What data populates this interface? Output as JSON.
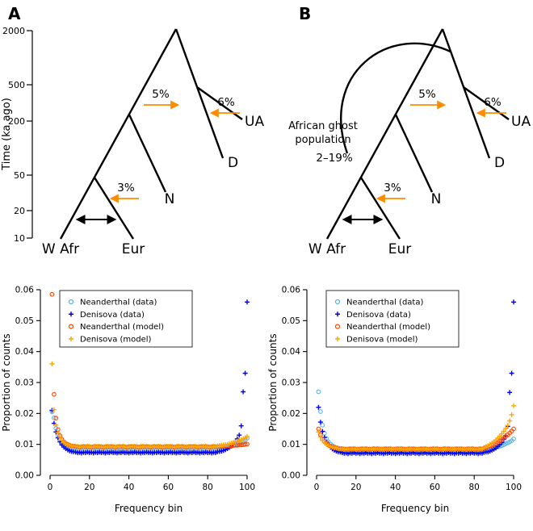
{
  "panels": {
    "a": "A",
    "b": "B"
  },
  "colors": {
    "neanderthal_data": "#56b4e9",
    "denisova_data": "#0000ee",
    "neanderthal_model": "#ff4500",
    "denisova_model": "#ffa500",
    "arrow": "#ff8c00",
    "ghost_rate": "#e8000b"
  },
  "tree": {
    "time_axis_label": "Time (ka ago)",
    "time_ticks": [
      "2000",
      "500",
      "200",
      "50",
      "20",
      "10"
    ],
    "tips": {
      "wafr": "W Afr",
      "eur": "Eur",
      "n": "N",
      "d": "D",
      "ua": "UA"
    },
    "arrows": {
      "five": "5%",
      "six": "6%",
      "three": "3%"
    },
    "ghost": {
      "line1": "African ghost",
      "line2": "population",
      "rate": "2–19%"
    }
  },
  "chart_data": [
    {
      "type": "scatter",
      "panel": "A",
      "xlabel": "Frequency bin",
      "ylabel": "Proportion of counts",
      "xlim": [
        0,
        100
      ],
      "ylim": [
        0,
        0.06
      ],
      "x_ticks": [
        0,
        20,
        40,
        60,
        80,
        100
      ],
      "y_ticks": [
        0,
        0.01,
        0.02,
        0.03,
        0.04,
        0.05,
        0.06
      ],
      "grid": "off",
      "legend_position": "top-left",
      "x_start": 1,
      "x_step": 1,
      "series": [
        {
          "name": "Neanderthal (data)",
          "marker": "circle",
          "color": "#56b4e9",
          "y": [
            0.0205,
            0.0186,
            0.0152,
            0.013,
            0.0116,
            0.0107,
            0.01,
            0.0096,
            0.0092,
            0.0089,
            0.0087,
            0.0086,
            0.0083,
            0.0081,
            0.0082,
            0.008,
            0.0082,
            0.0081,
            0.0083,
            0.0081,
            0.0082,
            0.008,
            0.0082,
            0.0081,
            0.0083,
            0.0081,
            0.0082,
            0.008,
            0.0082,
            0.0081,
            0.0083,
            0.0081,
            0.0082,
            0.008,
            0.0082,
            0.0081,
            0.0083,
            0.0081,
            0.0082,
            0.008,
            0.0082,
            0.0081,
            0.0083,
            0.0081,
            0.0082,
            0.008,
            0.0082,
            0.0081,
            0.0083,
            0.0081,
            0.0082,
            0.008,
            0.0082,
            0.0081,
            0.0083,
            0.0081,
            0.0082,
            0.008,
            0.0082,
            0.0081,
            0.0083,
            0.0081,
            0.0082,
            0.008,
            0.0082,
            0.0081,
            0.0083,
            0.0081,
            0.0082,
            0.008,
            0.0082,
            0.0081,
            0.0083,
            0.0081,
            0.0082,
            0.008,
            0.0082,
            0.0081,
            0.0083,
            0.0081,
            0.0082,
            0.008,
            0.0082,
            0.0081,
            0.0084,
            0.0085,
            0.0086,
            0.0087,
            0.0089,
            0.009,
            0.0092,
            0.0094,
            0.0096,
            0.0098,
            0.01,
            0.0103,
            0.0106,
            0.011,
            0.0114,
            0.012
          ]
        },
        {
          "name": "Denisova (data)",
          "marker": "plus",
          "color": "#0000ee",
          "y": [
            0.021,
            0.0168,
            0.014,
            0.0121,
            0.0108,
            0.0098,
            0.0091,
            0.0086,
            0.0082,
            0.0079,
            0.0077,
            0.0076,
            0.0075,
            0.0073,
            0.0074,
            0.0072,
            0.0074,
            0.0073,
            0.0075,
            0.0073,
            0.0074,
            0.0072,
            0.0074,
            0.0073,
            0.0075,
            0.0073,
            0.0074,
            0.0072,
            0.0074,
            0.0073,
            0.0075,
            0.0073,
            0.0074,
            0.0072,
            0.0074,
            0.0073,
            0.0075,
            0.0073,
            0.0074,
            0.0072,
            0.0074,
            0.0073,
            0.0075,
            0.0073,
            0.0074,
            0.0072,
            0.0074,
            0.0073,
            0.0075,
            0.0073,
            0.0074,
            0.0072,
            0.0074,
            0.0073,
            0.0075,
            0.0073,
            0.0074,
            0.0072,
            0.0074,
            0.0073,
            0.0075,
            0.0073,
            0.0074,
            0.0072,
            0.0074,
            0.0073,
            0.0075,
            0.0073,
            0.0074,
            0.0072,
            0.0074,
            0.0073,
            0.0075,
            0.0073,
            0.0074,
            0.0072,
            0.0074,
            0.0073,
            0.0075,
            0.0073,
            0.0074,
            0.0072,
            0.0074,
            0.0073,
            0.0076,
            0.0077,
            0.0078,
            0.008,
            0.0083,
            0.0086,
            0.009,
            0.0095,
            0.0101,
            0.0108,
            0.0118,
            0.013,
            0.016,
            0.027,
            0.033,
            0.056
          ]
        },
        {
          "name": "Neanderthal (model)",
          "marker": "circle",
          "color": "#ff4500",
          "y": [
            0.0585,
            0.0262,
            0.0185,
            0.0148,
            0.0128,
            0.0116,
            0.0108,
            0.0103,
            0.01,
            0.0097,
            0.0095,
            0.0094,
            0.0093,
            0.0092,
            0.0091,
            0.0092,
            0.0093,
            0.0092,
            0.0093,
            0.0092,
            0.0091,
            0.0092,
            0.0093,
            0.0092,
            0.0093,
            0.0092,
            0.0091,
            0.0092,
            0.0093,
            0.0092,
            0.0093,
            0.0092,
            0.0091,
            0.0092,
            0.0093,
            0.0092,
            0.0093,
            0.0092,
            0.0091,
            0.0092,
            0.0093,
            0.0092,
            0.0093,
            0.0092,
            0.0091,
            0.0092,
            0.0093,
            0.0092,
            0.0093,
            0.0092,
            0.0091,
            0.0092,
            0.0093,
            0.0092,
            0.0093,
            0.0092,
            0.0091,
            0.0092,
            0.0093,
            0.0092,
            0.0093,
            0.0092,
            0.0091,
            0.0092,
            0.0093,
            0.0092,
            0.0093,
            0.0092,
            0.0091,
            0.0092,
            0.0093,
            0.0092,
            0.0093,
            0.0092,
            0.0091,
            0.0092,
            0.0093,
            0.0092,
            0.0093,
            0.0092,
            0.0091,
            0.0092,
            0.0093,
            0.0092,
            0.0092,
            0.0093,
            0.0093,
            0.0094,
            0.0094,
            0.0095,
            0.0095,
            0.0096,
            0.0096,
            0.0097,
            0.0097,
            0.0098,
            0.0098,
            0.0099,
            0.01,
            0.0101
          ]
        },
        {
          "name": "Denisova (model)",
          "marker": "plus",
          "color": "#ffa500",
          "y": [
            0.036,
            0.0212,
            0.0163,
            0.0138,
            0.0123,
            0.0113,
            0.0106,
            0.0102,
            0.0099,
            0.0097,
            0.0095,
            0.0094,
            0.0094,
            0.0093,
            0.0092,
            0.0093,
            0.0094,
            0.0093,
            0.0094,
            0.0093,
            0.0092,
            0.0093,
            0.0094,
            0.0093,
            0.0094,
            0.0093,
            0.0092,
            0.0093,
            0.0094,
            0.0093,
            0.0094,
            0.0093,
            0.0092,
            0.0093,
            0.0094,
            0.0093,
            0.0094,
            0.0093,
            0.0092,
            0.0093,
            0.0094,
            0.0093,
            0.0094,
            0.0093,
            0.0092,
            0.0093,
            0.0094,
            0.0093,
            0.0094,
            0.0093,
            0.0092,
            0.0093,
            0.0094,
            0.0093,
            0.0094,
            0.0093,
            0.0092,
            0.0093,
            0.0094,
            0.0093,
            0.0094,
            0.0093,
            0.0092,
            0.0093,
            0.0094,
            0.0093,
            0.0094,
            0.0093,
            0.0092,
            0.0093,
            0.0094,
            0.0093,
            0.0094,
            0.0093,
            0.0092,
            0.0093,
            0.0094,
            0.0093,
            0.0094,
            0.0093,
            0.0092,
            0.0093,
            0.0094,
            0.0093,
            0.0095,
            0.0096,
            0.0097,
            0.0098,
            0.0099,
            0.01,
            0.0102,
            0.0104,
            0.0106,
            0.0108,
            0.011,
            0.0113,
            0.0115,
            0.0118,
            0.0121,
            0.0125
          ]
        }
      ]
    },
    {
      "type": "scatter",
      "panel": "B",
      "xlabel": "Frequency bin",
      "ylabel": "Proportion of counts",
      "xlim": [
        0,
        100
      ],
      "ylim": [
        0,
        0.06
      ],
      "x_ticks": [
        0,
        20,
        40,
        60,
        80,
        100
      ],
      "y_ticks": [
        0,
        0.01,
        0.02,
        0.03,
        0.04,
        0.05,
        0.06
      ],
      "grid": "off",
      "legend_position": "top-left",
      "x_start": 1,
      "x_step": 1,
      "series": [
        {
          "name": "Neanderthal (data)",
          "marker": "circle",
          "color": "#56b4e9",
          "y": [
            0.027,
            0.0206,
            0.0162,
            0.0136,
            0.0119,
            0.0108,
            0.0101,
            0.0096,
            0.0092,
            0.0089,
            0.0087,
            0.0085,
            0.0081,
            0.0079,
            0.008,
            0.0078,
            0.008,
            0.0079,
            0.0081,
            0.0079,
            0.008,
            0.0078,
            0.008,
            0.0079,
            0.0081,
            0.0079,
            0.008,
            0.0078,
            0.008,
            0.0079,
            0.0081,
            0.0079,
            0.008,
            0.0078,
            0.008,
            0.0079,
            0.0081,
            0.0079,
            0.008,
            0.0078,
            0.008,
            0.0079,
            0.0081,
            0.0079,
            0.008,
            0.0078,
            0.008,
            0.0079,
            0.0081,
            0.0079,
            0.008,
            0.0078,
            0.008,
            0.0079,
            0.0081,
            0.0079,
            0.008,
            0.0078,
            0.008,
            0.0079,
            0.0081,
            0.0079,
            0.008,
            0.0078,
            0.008,
            0.0079,
            0.0081,
            0.0079,
            0.008,
            0.0078,
            0.008,
            0.0079,
            0.0081,
            0.0079,
            0.008,
            0.0078,
            0.008,
            0.0079,
            0.0081,
            0.0079,
            0.008,
            0.0078,
            0.008,
            0.0079,
            0.0082,
            0.0083,
            0.0084,
            0.0085,
            0.0086,
            0.0088,
            0.009,
            0.0092,
            0.0094,
            0.0096,
            0.0099,
            0.0102,
            0.0105,
            0.0108,
            0.0112,
            0.0118
          ]
        },
        {
          "name": "Denisova (data)",
          "marker": "plus",
          "color": "#0000ee",
          "y": [
            0.022,
            0.0172,
            0.0142,
            0.0122,
            0.0108,
            0.0098,
            0.0091,
            0.0085,
            0.0081,
            0.0078,
            0.0076,
            0.0075,
            0.0073,
            0.0071,
            0.0072,
            0.007,
            0.0072,
            0.0071,
            0.0073,
            0.0071,
            0.0072,
            0.007,
            0.0072,
            0.0071,
            0.0073,
            0.0071,
            0.0072,
            0.007,
            0.0072,
            0.0071,
            0.0073,
            0.0071,
            0.0072,
            0.007,
            0.0072,
            0.0071,
            0.0073,
            0.0071,
            0.0072,
            0.007,
            0.0072,
            0.0071,
            0.0073,
            0.0071,
            0.0072,
            0.007,
            0.0072,
            0.0071,
            0.0073,
            0.0071,
            0.0072,
            0.007,
            0.0072,
            0.0071,
            0.0073,
            0.0071,
            0.0072,
            0.007,
            0.0072,
            0.0071,
            0.0073,
            0.0071,
            0.0072,
            0.007,
            0.0072,
            0.0071,
            0.0073,
            0.0071,
            0.0072,
            0.007,
            0.0072,
            0.0071,
            0.0073,
            0.0071,
            0.0072,
            0.007,
            0.0072,
            0.0071,
            0.0073,
            0.0071,
            0.0072,
            0.007,
            0.0072,
            0.0071,
            0.0074,
            0.0075,
            0.0076,
            0.0078,
            0.0081,
            0.0084,
            0.0088,
            0.0093,
            0.0099,
            0.0106,
            0.0116,
            0.0128,
            0.0158,
            0.0268,
            0.033,
            0.056
          ]
        },
        {
          "name": "Neanderthal (model)",
          "marker": "circle",
          "color": "#ff4500",
          "y": [
            0.015,
            0.0131,
            0.0118,
            0.0109,
            0.0103,
            0.0098,
            0.0095,
            0.0092,
            0.009,
            0.0089,
            0.0088,
            0.0087,
            0.0086,
            0.0085,
            0.0084,
            0.0085,
            0.0086,
            0.0085,
            0.0086,
            0.0085,
            0.0084,
            0.0085,
            0.0086,
            0.0085,
            0.0086,
            0.0085,
            0.0084,
            0.0085,
            0.0086,
            0.0085,
            0.0086,
            0.0085,
            0.0084,
            0.0085,
            0.0086,
            0.0085,
            0.0086,
            0.0085,
            0.0084,
            0.0085,
            0.0086,
            0.0085,
            0.0086,
            0.0085,
            0.0084,
            0.0085,
            0.0086,
            0.0085,
            0.0086,
            0.0085,
            0.0084,
            0.0085,
            0.0086,
            0.0085,
            0.0086,
            0.0085,
            0.0084,
            0.0085,
            0.0086,
            0.0085,
            0.0086,
            0.0085,
            0.0084,
            0.0085,
            0.0086,
            0.0085,
            0.0086,
            0.0085,
            0.0084,
            0.0085,
            0.0086,
            0.0085,
            0.0086,
            0.0085,
            0.0084,
            0.0085,
            0.0086,
            0.0085,
            0.0086,
            0.0085,
            0.0084,
            0.0085,
            0.0086,
            0.0085,
            0.0088,
            0.009,
            0.0092,
            0.0094,
            0.0097,
            0.01,
            0.0103,
            0.0107,
            0.0111,
            0.0115,
            0.012,
            0.0125,
            0.0131,
            0.0137,
            0.0143,
            0.015
          ]
        },
        {
          "name": "Denisova (model)",
          "marker": "plus",
          "color": "#ffa500",
          "y": [
            0.014,
            0.0124,
            0.0113,
            0.0106,
            0.01,
            0.0096,
            0.0093,
            0.0091,
            0.0089,
            0.0088,
            0.0087,
            0.0086,
            0.0086,
            0.0084,
            0.0085,
            0.0084,
            0.0086,
            0.0085,
            0.0086,
            0.0084,
            0.0085,
            0.0084,
            0.0086,
            0.0085,
            0.0086,
            0.0084,
            0.0085,
            0.0084,
            0.0086,
            0.0085,
            0.0086,
            0.0084,
            0.0085,
            0.0084,
            0.0086,
            0.0085,
            0.0086,
            0.0084,
            0.0085,
            0.0084,
            0.0086,
            0.0085,
            0.0086,
            0.0084,
            0.0085,
            0.0084,
            0.0086,
            0.0085,
            0.0086,
            0.0084,
            0.0085,
            0.0084,
            0.0086,
            0.0085,
            0.0086,
            0.0084,
            0.0085,
            0.0084,
            0.0086,
            0.0085,
            0.0086,
            0.0084,
            0.0085,
            0.0084,
            0.0086,
            0.0085,
            0.0086,
            0.0084,
            0.0085,
            0.0084,
            0.0086,
            0.0085,
            0.0086,
            0.0084,
            0.0085,
            0.0084,
            0.0086,
            0.0085,
            0.0086,
            0.0084,
            0.0085,
            0.0084,
            0.0086,
            0.0085,
            0.009,
            0.0093,
            0.0096,
            0.01,
            0.0104,
            0.0109,
            0.0114,
            0.012,
            0.0127,
            0.0134,
            0.0142,
            0.0151,
            0.0161,
            0.0176,
            0.0196,
            0.0225
          ]
        }
      ]
    }
  ]
}
